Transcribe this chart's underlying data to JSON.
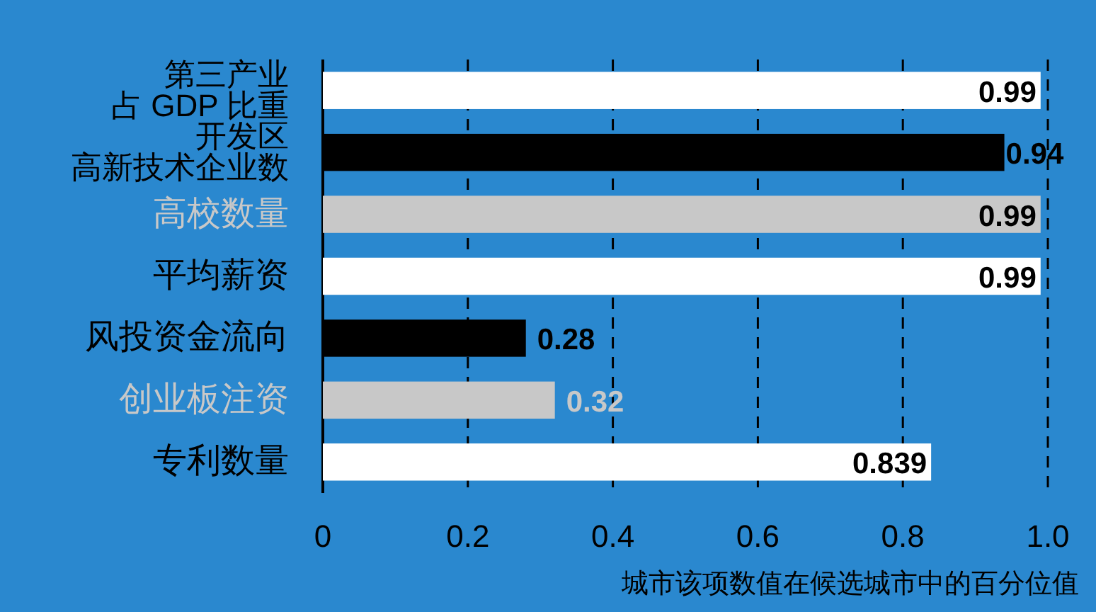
{
  "chart_data": {
    "type": "bar",
    "orientation": "horizontal",
    "xlabel": "城市该项数值在候选城市中的百分位值",
    "categories": [
      "第三产业占 GDP 比重",
      "开发区高新技术企业数",
      "高校数量",
      "平均薪资",
      "风投资金流向",
      "创业板注资",
      "专利数量"
    ],
    "values": [
      0.99,
      0.94,
      0.99,
      0.99,
      0.28,
      0.32,
      0.839
    ],
    "colors": [
      "#ffffff",
      "#000000",
      "#c8c8c8",
      "#ffffff",
      "#000000",
      "#c8c8c8",
      "#ffffff"
    ],
    "xlim": [
      0,
      1
    ],
    "xticks": [
      0,
      0.2,
      0.4,
      0.6,
      0.8,
      {
        "value": 1,
        "label": "1.0"
      }
    ],
    "grid": "x",
    "data_labels": true
  }
}
